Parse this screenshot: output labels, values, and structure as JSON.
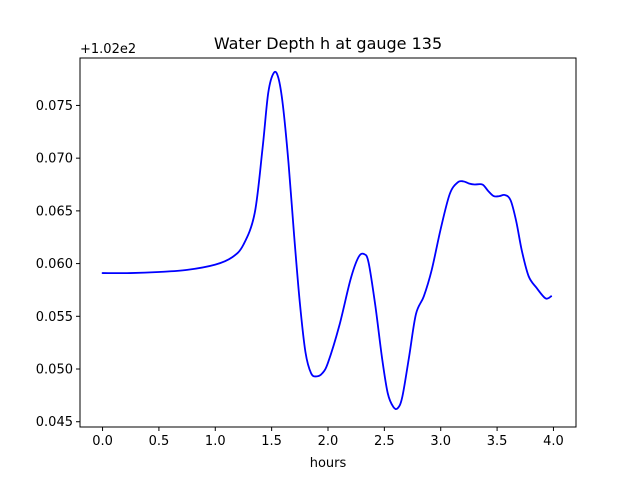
{
  "chart_data": {
    "type": "line",
    "title": "Water Depth h at gauge 135",
    "xlabel": "hours",
    "ylabel": "",
    "y_offset_label": "+1.02e2",
    "y_offset": 102,
    "xlim": [
      -0.2,
      4.2
    ],
    "ylim": [
      102.0445,
      102.0795
    ],
    "xticks": [
      0.0,
      0.5,
      1.0,
      1.5,
      2.0,
      2.5,
      3.0,
      3.5,
      4.0
    ],
    "xtick_labels": [
      "0.0",
      "0.5",
      "1.0",
      "1.5",
      "2.0",
      "2.5",
      "3.0",
      "3.5",
      "4.0"
    ],
    "yticks": [
      0.045,
      0.05,
      0.055,
      0.06,
      0.065,
      0.07,
      0.075
    ],
    "ytick_labels": [
      "0.045",
      "0.050",
      "0.055",
      "0.060",
      "0.065",
      "0.070",
      "0.075"
    ],
    "grid": false,
    "line_color": "#0000ff",
    "series": [
      {
        "x": [
          0.0,
          0.25,
          0.5,
          0.75,
          1.0,
          1.15,
          1.25,
          1.35,
          1.42,
          1.47,
          1.52,
          1.56,
          1.6,
          1.65,
          1.7,
          1.75,
          1.8,
          1.85,
          1.9,
          1.95,
          2.0,
          2.1,
          2.2,
          2.27,
          2.32,
          2.36,
          2.42,
          2.48,
          2.53,
          2.58,
          2.62,
          2.66,
          2.72,
          2.78,
          2.85,
          2.92,
          3.0,
          3.08,
          3.15,
          3.2,
          3.25,
          3.3,
          3.37,
          3.42,
          3.47,
          3.52,
          3.57,
          3.62,
          3.67,
          3.72,
          3.78,
          3.85,
          3.93,
          3.98
        ],
        "y": [
          102.0591,
          102.0591,
          102.0592,
          102.0594,
          102.0599,
          102.0606,
          102.0618,
          102.0648,
          102.071,
          102.0762,
          102.0781,
          102.0776,
          102.075,
          102.0695,
          102.0626,
          102.0563,
          102.0516,
          102.0496,
          102.0493,
          102.0496,
          102.0506,
          102.0541,
          102.0585,
          102.0606,
          102.0609,
          102.0601,
          102.056,
          102.051,
          102.0477,
          102.0464,
          102.0463,
          102.0474,
          102.0512,
          102.0552,
          102.0569,
          102.0594,
          102.0633,
          102.0666,
          102.0677,
          102.0678,
          102.0676,
          102.0675,
          102.0675,
          102.0669,
          102.0664,
          102.0664,
          102.0665,
          102.066,
          102.064,
          102.0612,
          102.0588,
          102.0577,
          102.0567,
          102.0569
        ]
      }
    ]
  }
}
